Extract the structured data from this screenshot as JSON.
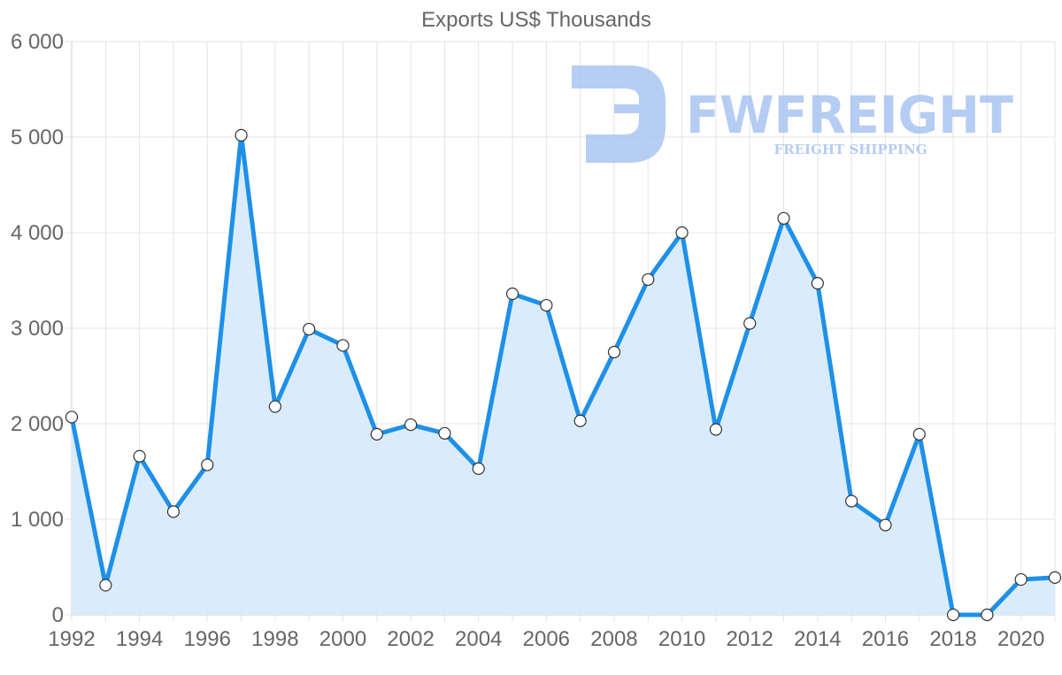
{
  "chart_data": {
    "type": "area",
    "title": "Exports US$ Thousands",
    "xlabel": "",
    "ylabel": "",
    "x": [
      1992,
      1993,
      1994,
      1995,
      1996,
      1997,
      1998,
      1999,
      2000,
      2001,
      2002,
      2003,
      2004,
      2005,
      2006,
      2007,
      2008,
      2009,
      2010,
      2011,
      2012,
      2013,
      2014,
      2015,
      2016,
      2017,
      2018,
      2019,
      2020,
      2021
    ],
    "series": [
      {
        "name": "Exports US$ Thousands",
        "values": [
          2070,
          310,
          1660,
          1080,
          1570,
          5020,
          2180,
          2990,
          2820,
          1890,
          1990,
          1900,
          1530,
          3360,
          3240,
          2030,
          2750,
          3510,
          4000,
          1940,
          3050,
          4150,
          3470,
          1190,
          940,
          1890,
          0,
          0,
          370,
          390
        ]
      }
    ],
    "xlim": [
      1992,
      2021
    ],
    "ylim": [
      0,
      6000
    ],
    "yticks": [
      0,
      1000,
      2000,
      3000,
      4000,
      5000,
      6000
    ],
    "ytick_labels": [
      "0",
      "1 000",
      "2 000",
      "3 000",
      "4 000",
      "5 000",
      "6 000"
    ],
    "xticks": [
      1992,
      1994,
      1996,
      1998,
      2000,
      2002,
      2004,
      2006,
      2008,
      2010,
      2012,
      2014,
      2016,
      2018,
      2020
    ],
    "xtick_labels": [
      "1992",
      "1994",
      "1996",
      "1998",
      "2000",
      "2002",
      "2004",
      "2006",
      "2008",
      "2010",
      "2012",
      "2014",
      "2016",
      "2018",
      "2020"
    ],
    "grid": true,
    "colors": {
      "line": "#1e90e8",
      "fill": "#d6eafb"
    }
  },
  "watermark": {
    "brand": "FWFREIGHT",
    "tagline": "FREIGHT SHIPPING",
    "color": "#a9c4f2"
  }
}
